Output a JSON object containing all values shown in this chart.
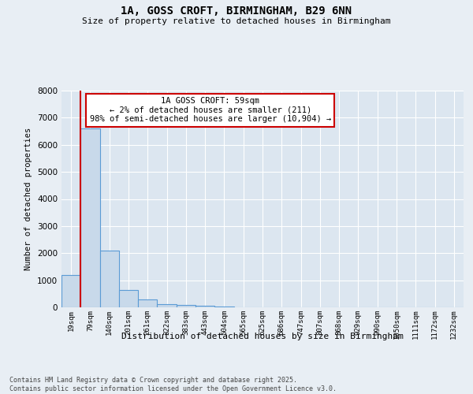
{
  "title1": "1A, GOSS CROFT, BIRMINGHAM, B29 6NN",
  "title2": "Size of property relative to detached houses in Birmingham",
  "xlabel": "Distribution of detached houses by size in Birmingham",
  "ylabel": "Number of detached properties",
  "categories": [
    "19sqm",
    "79sqm",
    "140sqm",
    "201sqm",
    "261sqm",
    "322sqm",
    "383sqm",
    "443sqm",
    "504sqm",
    "565sqm",
    "625sqm",
    "686sqm",
    "747sqm",
    "807sqm",
    "868sqm",
    "929sqm",
    "990sqm",
    "1050sqm",
    "1111sqm",
    "1172sqm",
    "1232sqm"
  ],
  "values": [
    1200,
    6600,
    2100,
    650,
    280,
    130,
    90,
    50,
    20,
    10,
    5,
    3,
    2,
    1,
    1,
    0,
    0,
    0,
    0,
    0,
    0
  ],
  "bar_color": "#c8d9ea",
  "bar_edge_color": "#5b9bd5",
  "annotation_box_text": "1A GOSS CROFT: 59sqm\n← 2% of detached houses are smaller (211)\n98% of semi-detached houses are larger (10,904) →",
  "vline_x_index": 0.5,
  "ylim": [
    0,
    8000
  ],
  "yticks": [
    0,
    1000,
    2000,
    3000,
    4000,
    5000,
    6000,
    7000,
    8000
  ],
  "background_color": "#e8eef4",
  "plot_bg_color": "#dce6f0",
  "grid_color": "#ffffff",
  "annotation_box_color": "#ffffff",
  "annotation_box_edge": "#cc0000",
  "vline_color": "#cc0000",
  "footer_line1": "Contains HM Land Registry data © Crown copyright and database right 2025.",
  "footer_line2": "Contains public sector information licensed under the Open Government Licence v3.0."
}
